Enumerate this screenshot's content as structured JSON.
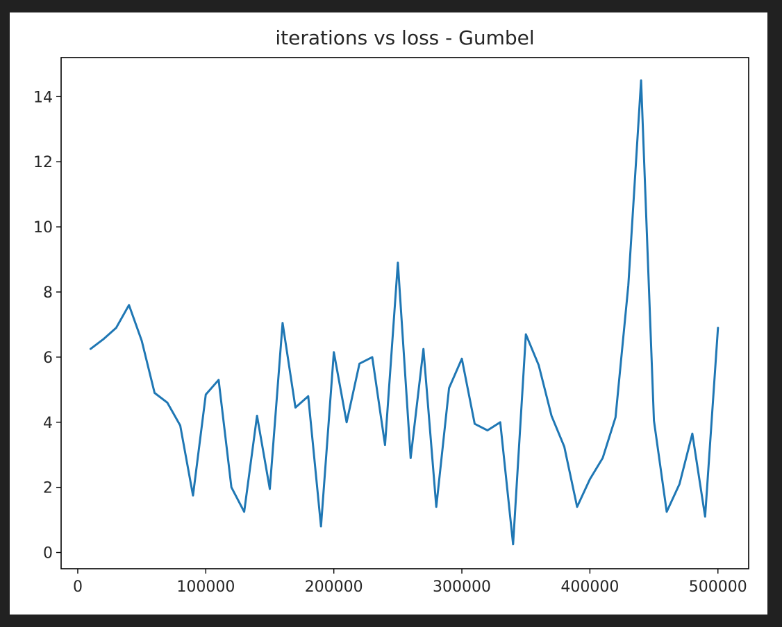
{
  "chart_data": {
    "type": "line",
    "title": "iterations vs loss - Gumbel",
    "xlabel": "",
    "ylabel": "",
    "xlim": [
      -13000,
      524000
    ],
    "ylim": [
      -0.5,
      15.2
    ],
    "grid": false,
    "legend": "none",
    "x_ticks": [
      0,
      100000,
      200000,
      300000,
      400000,
      500000
    ],
    "x_tick_labels": [
      "0",
      "100000",
      "200000",
      "300000",
      "400000",
      "500000"
    ],
    "y_ticks": [
      0,
      2,
      4,
      6,
      8,
      10,
      12,
      14
    ],
    "y_tick_labels": [
      "0",
      "2",
      "4",
      "6",
      "8",
      "10",
      "12",
      "14"
    ],
    "series": [
      {
        "color": "#1f77b4",
        "x": [
          10000,
          20000,
          30000,
          40000,
          50000,
          60000,
          70000,
          80000,
          90000,
          100000,
          110000,
          120000,
          130000,
          140000,
          150000,
          160000,
          170000,
          180000,
          190000,
          200000,
          210000,
          220000,
          230000,
          240000,
          250000,
          260000,
          270000,
          280000,
          290000,
          300000,
          310000,
          320000,
          330000,
          340000,
          350000,
          360000,
          370000,
          380000,
          390000,
          400000,
          410000,
          420000,
          430000,
          440000,
          450000,
          460000,
          470000,
          480000,
          490000,
          500000
        ],
        "y": [
          6.25,
          6.55,
          6.9,
          7.6,
          6.5,
          4.9,
          4.6,
          3.9,
          1.75,
          4.85,
          5.3,
          2.0,
          1.25,
          4.2,
          1.95,
          7.05,
          4.45,
          4.8,
          0.8,
          6.15,
          4.0,
          5.8,
          6.0,
          3.3,
          8.9,
          2.9,
          6.25,
          1.4,
          5.05,
          5.95,
          3.95,
          3.75,
          4.0,
          0.25,
          6.7,
          5.75,
          4.2,
          3.25,
          1.4,
          2.25,
          2.9,
          4.15,
          8.2,
          14.5,
          4.05,
          1.25,
          2.1,
          3.65,
          1.1,
          6.9
        ]
      }
    ]
  }
}
